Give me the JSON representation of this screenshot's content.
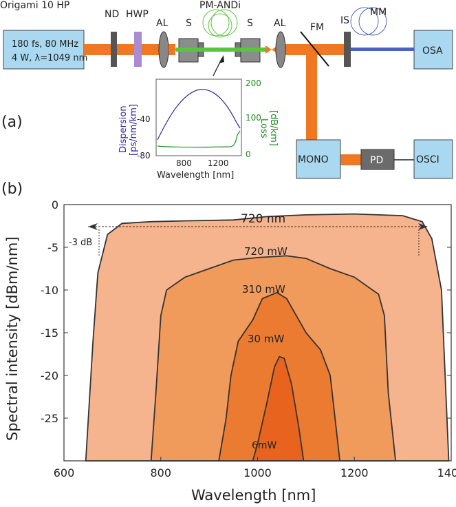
{
  "panel_a": {
    "tag": "(a)",
    "laser": {
      "name": "Origami 10 HP",
      "spec1": "180 fs, 80 MHz",
      "spec2": "4 W, λ=1049 nm"
    },
    "components": {
      "nd": "ND",
      "hwp": "HWP",
      "al1": "AL",
      "s1": "S",
      "fiber": "PM-ANDi",
      "s2": "S",
      "al2": "AL",
      "fm": "FM",
      "is": "IS",
      "mm": "MM",
      "osa": "OSA",
      "mono": "MONO",
      "pd": "PD",
      "osci": "OSCI"
    },
    "inset": {
      "left_axis_label_1": "Dispersion",
      "left_axis_label_2": "[ps/nm/km]",
      "right_axis_label_1": "Loss",
      "right_axis_label_2": "[dB/km]",
      "xlabel": "Wavelength [nm]",
      "x_ticks": [
        "800",
        "1200"
      ],
      "left_ticks": [
        "-40",
        "-80"
      ],
      "right_ticks": [
        "200",
        "100",
        "0"
      ],
      "colors": {
        "dispersion": "#2a2a9a",
        "loss": "#1f8a1f"
      }
    }
  },
  "panel_b": {
    "tag": "(b)",
    "colors": {
      "s720": "#f5b38e",
      "s310": "#f09a5c",
      "s30": "#ec7b32",
      "s6": "#e8641e",
      "outline": "#333333"
    }
  },
  "chart_data": {
    "type": "area",
    "xlabel": "Wavelength [nm]",
    "ylabel": "Spectral intensity [dBm/nm]",
    "xlim": [
      600,
      1400
    ],
    "ylim": [
      -30,
      0
    ],
    "x_ticks": [
      600,
      800,
      1000,
      1200,
      1400
    ],
    "y_ticks": [
      0,
      -5,
      -10,
      -15,
      -20,
      -25
    ],
    "annotations": {
      "bandwidth": "720 nm",
      "level": "-3 dB"
    },
    "series": [
      {
        "name": "720 mW",
        "values": [
          [
            645,
            -30
          ],
          [
            660,
            -16
          ],
          [
            670,
            -8
          ],
          [
            690,
            -3.5
          ],
          [
            720,
            -2.2
          ],
          [
            780,
            -2
          ],
          [
            850,
            -1.9
          ],
          [
            950,
            -1.8
          ],
          [
            1020,
            -1.4
          ],
          [
            1100,
            -1.2
          ],
          [
            1200,
            -1.1
          ],
          [
            1300,
            -1.3
          ],
          [
            1340,
            -2
          ],
          [
            1360,
            -4
          ],
          [
            1380,
            -10
          ],
          [
            1395,
            -30
          ]
        ]
      },
      {
        "name": "310 mW",
        "values": [
          [
            780,
            -30
          ],
          [
            790,
            -22
          ],
          [
            800,
            -13
          ],
          [
            812,
            -10
          ],
          [
            850,
            -8.5
          ],
          [
            900,
            -7.5
          ],
          [
            950,
            -6.5
          ],
          [
            1000,
            -6.2
          ],
          [
            1060,
            -6
          ],
          [
            1100,
            -6.3
          ],
          [
            1150,
            -7.5
          ],
          [
            1200,
            -8.5
          ],
          [
            1250,
            -10.5
          ],
          [
            1262,
            -13
          ],
          [
            1270,
            -22
          ],
          [
            1285,
            -30
          ]
        ]
      },
      {
        "name": "30 mW",
        "values": [
          [
            920,
            -30
          ],
          [
            935,
            -25
          ],
          [
            945,
            -20
          ],
          [
            960,
            -16
          ],
          [
            990,
            -13.5
          ],
          [
            1010,
            -11
          ],
          [
            1040,
            -10.3
          ],
          [
            1060,
            -11
          ],
          [
            1080,
            -13
          ],
          [
            1100,
            -15
          ],
          [
            1130,
            -17
          ],
          [
            1150,
            -20
          ],
          [
            1170,
            -30
          ]
        ]
      },
      {
        "name": "6mW",
        "values": [
          [
            990,
            -30
          ],
          [
            1000,
            -28
          ],
          [
            1020,
            -23
          ],
          [
            1035,
            -19
          ],
          [
            1045,
            -17.8
          ],
          [
            1055,
            -18
          ],
          [
            1070,
            -21
          ],
          [
            1085,
            -26
          ],
          [
            1095,
            -30
          ]
        ]
      }
    ]
  }
}
